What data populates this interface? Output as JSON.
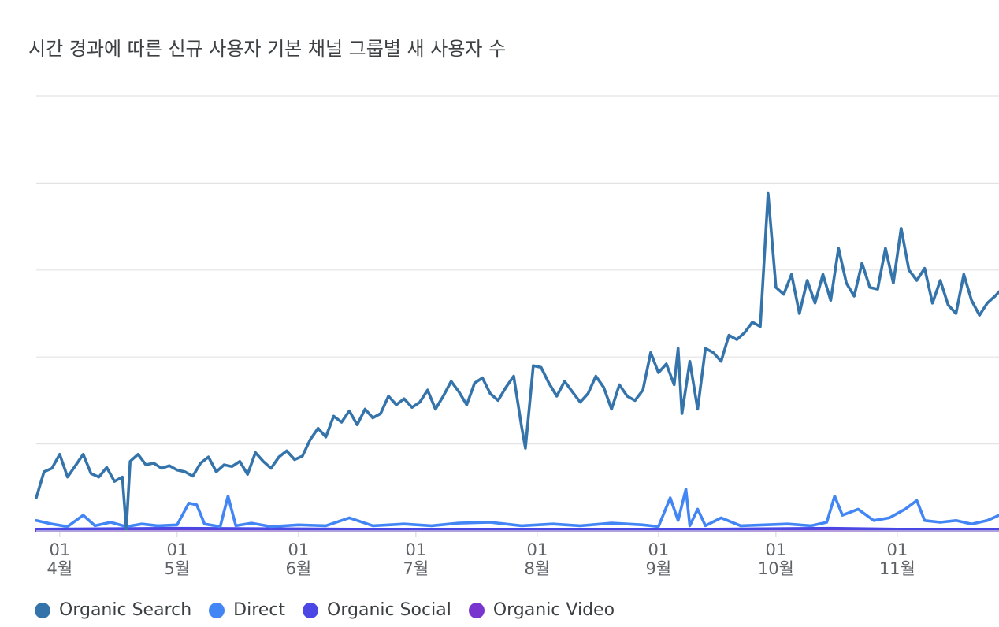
{
  "chart_data": {
    "type": "line",
    "title": "시간 경과에 따른 신규 사용자 기본 채널 그룹별 새 사용자 수",
    "month_ticks": [
      {
        "day": "01",
        "month": "4월",
        "date": "2023-04-01"
      },
      {
        "day": "01",
        "month": "5월",
        "date": "2023-05-01"
      },
      {
        "day": "01",
        "month": "6월",
        "date": "2023-06-01"
      },
      {
        "day": "01",
        "month": "7월",
        "date": "2023-07-01"
      },
      {
        "day": "01",
        "month": "8월",
        "date": "2023-08-01"
      },
      {
        "day": "01",
        "month": "9월",
        "date": "2023-09-01"
      },
      {
        "day": "01",
        "month": "10월",
        "date": "2023-10-01"
      },
      {
        "day": "01",
        "month": "11월",
        "date": "2023-11-01"
      }
    ],
    "x_range": [
      "2023-03-26",
      "2023-11-27"
    ],
    "ylim": [
      0,
      5
    ],
    "gridlines": 5,
    "legend_position": "bottom-left",
    "series": [
      {
        "name": "Organic Search",
        "color": "#3574ab",
        "points": [
          [
            "2023-03-26",
            0.38
          ],
          [
            "2023-03-28",
            0.68
          ],
          [
            "2023-03-30",
            0.72
          ],
          [
            "2023-04-01",
            0.88
          ],
          [
            "2023-04-03",
            0.62
          ],
          [
            "2023-04-05",
            0.75
          ],
          [
            "2023-04-07",
            0.88
          ],
          [
            "2023-04-09",
            0.66
          ],
          [
            "2023-04-11",
            0.62
          ],
          [
            "2023-04-13",
            0.73
          ],
          [
            "2023-04-15",
            0.57
          ],
          [
            "2023-04-17",
            0.62
          ],
          [
            "2023-04-18",
            0.02
          ],
          [
            "2023-04-19",
            0.8
          ],
          [
            "2023-04-21",
            0.88
          ],
          [
            "2023-04-23",
            0.76
          ],
          [
            "2023-04-25",
            0.78
          ],
          [
            "2023-04-27",
            0.72
          ],
          [
            "2023-04-29",
            0.75
          ],
          [
            "2023-05-01",
            0.7
          ],
          [
            "2023-05-03",
            0.68
          ],
          [
            "2023-05-05",
            0.63
          ],
          [
            "2023-05-07",
            0.78
          ],
          [
            "2023-05-09",
            0.85
          ],
          [
            "2023-05-11",
            0.68
          ],
          [
            "2023-05-13",
            0.76
          ],
          [
            "2023-05-15",
            0.74
          ],
          [
            "2023-05-17",
            0.8
          ],
          [
            "2023-05-19",
            0.65
          ],
          [
            "2023-05-21",
            0.9
          ],
          [
            "2023-05-23",
            0.8
          ],
          [
            "2023-05-25",
            0.72
          ],
          [
            "2023-05-27",
            0.85
          ],
          [
            "2023-05-29",
            0.92
          ],
          [
            "2023-05-31",
            0.82
          ],
          [
            "2023-06-02",
            0.86
          ],
          [
            "2023-06-04",
            1.05
          ],
          [
            "2023-06-06",
            1.18
          ],
          [
            "2023-06-08",
            1.08
          ],
          [
            "2023-06-10",
            1.32
          ],
          [
            "2023-06-12",
            1.25
          ],
          [
            "2023-06-14",
            1.38
          ],
          [
            "2023-06-16",
            1.22
          ],
          [
            "2023-06-18",
            1.4
          ],
          [
            "2023-06-20",
            1.3
          ],
          [
            "2023-06-22",
            1.35
          ],
          [
            "2023-06-24",
            1.55
          ],
          [
            "2023-06-26",
            1.45
          ],
          [
            "2023-06-28",
            1.52
          ],
          [
            "2023-06-30",
            1.42
          ],
          [
            "2023-07-02",
            1.48
          ],
          [
            "2023-07-04",
            1.62
          ],
          [
            "2023-07-06",
            1.4
          ],
          [
            "2023-07-08",
            1.55
          ],
          [
            "2023-07-10",
            1.72
          ],
          [
            "2023-07-12",
            1.6
          ],
          [
            "2023-07-14",
            1.45
          ],
          [
            "2023-07-16",
            1.7
          ],
          [
            "2023-07-18",
            1.76
          ],
          [
            "2023-07-20",
            1.58
          ],
          [
            "2023-07-22",
            1.5
          ],
          [
            "2023-07-24",
            1.65
          ],
          [
            "2023-07-26",
            1.78
          ],
          [
            "2023-07-28",
            1.2
          ],
          [
            "2023-07-29",
            0.95
          ],
          [
            "2023-07-31",
            1.9
          ],
          [
            "2023-08-02",
            1.88
          ],
          [
            "2023-08-04",
            1.7
          ],
          [
            "2023-08-06",
            1.55
          ],
          [
            "2023-08-08",
            1.72
          ],
          [
            "2023-08-10",
            1.6
          ],
          [
            "2023-08-12",
            1.48
          ],
          [
            "2023-08-14",
            1.58
          ],
          [
            "2023-08-16",
            1.78
          ],
          [
            "2023-08-18",
            1.65
          ],
          [
            "2023-08-20",
            1.4
          ],
          [
            "2023-08-22",
            1.68
          ],
          [
            "2023-08-24",
            1.55
          ],
          [
            "2023-08-26",
            1.5
          ],
          [
            "2023-08-28",
            1.62
          ],
          [
            "2023-08-30",
            2.05
          ],
          [
            "2023-09-01",
            1.82
          ],
          [
            "2023-09-03",
            1.92
          ],
          [
            "2023-09-05",
            1.68
          ],
          [
            "2023-09-06",
            2.1
          ],
          [
            "2023-09-07",
            1.35
          ],
          [
            "2023-09-09",
            1.95
          ],
          [
            "2023-09-11",
            1.4
          ],
          [
            "2023-09-13",
            2.1
          ],
          [
            "2023-09-15",
            2.05
          ],
          [
            "2023-09-17",
            1.95
          ],
          [
            "2023-09-19",
            2.25
          ],
          [
            "2023-09-21",
            2.2
          ],
          [
            "2023-09-23",
            2.28
          ],
          [
            "2023-09-25",
            2.4
          ],
          [
            "2023-09-27",
            2.35
          ],
          [
            "2023-09-29",
            3.88
          ],
          [
            "2023-10-01",
            2.8
          ],
          [
            "2023-10-03",
            2.72
          ],
          [
            "2023-10-05",
            2.95
          ],
          [
            "2023-10-07",
            2.5
          ],
          [
            "2023-10-09",
            2.88
          ],
          [
            "2023-10-11",
            2.62
          ],
          [
            "2023-10-13",
            2.95
          ],
          [
            "2023-10-15",
            2.65
          ],
          [
            "2023-10-17",
            3.25
          ],
          [
            "2023-10-19",
            2.85
          ],
          [
            "2023-10-21",
            2.7
          ],
          [
            "2023-10-23",
            3.08
          ],
          [
            "2023-10-25",
            2.8
          ],
          [
            "2023-10-27",
            2.78
          ],
          [
            "2023-10-29",
            3.25
          ],
          [
            "2023-10-31",
            2.85
          ],
          [
            "2023-11-02",
            3.48
          ],
          [
            "2023-11-04",
            3.0
          ],
          [
            "2023-11-06",
            2.88
          ],
          [
            "2023-11-08",
            3.02
          ],
          [
            "2023-11-10",
            2.62
          ],
          [
            "2023-11-12",
            2.88
          ],
          [
            "2023-11-14",
            2.6
          ],
          [
            "2023-11-16",
            2.5
          ],
          [
            "2023-11-18",
            2.95
          ],
          [
            "2023-11-20",
            2.65
          ],
          [
            "2023-11-22",
            2.48
          ],
          [
            "2023-11-24",
            2.62
          ],
          [
            "2023-11-26",
            2.7
          ],
          [
            "2023-11-27",
            2.75
          ]
        ]
      },
      {
        "name": "Direct",
        "color": "#4285f4",
        "points": [
          [
            "2023-03-26",
            0.12
          ],
          [
            "2023-03-30",
            0.08
          ],
          [
            "2023-04-03",
            0.05
          ],
          [
            "2023-04-07",
            0.18
          ],
          [
            "2023-04-10",
            0.06
          ],
          [
            "2023-04-14",
            0.1
          ],
          [
            "2023-04-18",
            0.05
          ],
          [
            "2023-04-22",
            0.08
          ],
          [
            "2023-04-26",
            0.06
          ],
          [
            "2023-05-01",
            0.07
          ],
          [
            "2023-05-04",
            0.32
          ],
          [
            "2023-05-06",
            0.3
          ],
          [
            "2023-05-08",
            0.08
          ],
          [
            "2023-05-12",
            0.05
          ],
          [
            "2023-05-14",
            0.4
          ],
          [
            "2023-05-16",
            0.06
          ],
          [
            "2023-05-20",
            0.09
          ],
          [
            "2023-05-25",
            0.05
          ],
          [
            "2023-06-01",
            0.07
          ],
          [
            "2023-06-08",
            0.06
          ],
          [
            "2023-06-14",
            0.15
          ],
          [
            "2023-06-20",
            0.06
          ],
          [
            "2023-06-28",
            0.08
          ],
          [
            "2023-07-05",
            0.06
          ],
          [
            "2023-07-12",
            0.09
          ],
          [
            "2023-07-20",
            0.1
          ],
          [
            "2023-07-28",
            0.06
          ],
          [
            "2023-08-05",
            0.08
          ],
          [
            "2023-08-12",
            0.06
          ],
          [
            "2023-08-20",
            0.09
          ],
          [
            "2023-08-28",
            0.07
          ],
          [
            "2023-09-01",
            0.05
          ],
          [
            "2023-09-04",
            0.38
          ],
          [
            "2023-09-06",
            0.12
          ],
          [
            "2023-09-08",
            0.48
          ],
          [
            "2023-09-09",
            0.06
          ],
          [
            "2023-09-11",
            0.25
          ],
          [
            "2023-09-13",
            0.06
          ],
          [
            "2023-09-17",
            0.15
          ],
          [
            "2023-09-22",
            0.06
          ],
          [
            "2023-09-28",
            0.07
          ],
          [
            "2023-10-04",
            0.08
          ],
          [
            "2023-10-10",
            0.06
          ],
          [
            "2023-10-14",
            0.1
          ],
          [
            "2023-10-16",
            0.4
          ],
          [
            "2023-10-18",
            0.18
          ],
          [
            "2023-10-22",
            0.25
          ],
          [
            "2023-10-26",
            0.12
          ],
          [
            "2023-10-30",
            0.15
          ],
          [
            "2023-11-03",
            0.25
          ],
          [
            "2023-11-06",
            0.35
          ],
          [
            "2023-11-08",
            0.12
          ],
          [
            "2023-11-12",
            0.1
          ],
          [
            "2023-11-16",
            0.12
          ],
          [
            "2023-11-20",
            0.08
          ],
          [
            "2023-11-24",
            0.12
          ],
          [
            "2023-11-27",
            0.18
          ]
        ]
      },
      {
        "name": "Organic Social",
        "color": "#4a47e5",
        "points": [
          [
            "2023-03-26",
            0.02
          ],
          [
            "2023-05-01",
            0.03
          ],
          [
            "2023-06-15",
            0.02
          ],
          [
            "2023-08-01",
            0.02
          ],
          [
            "2023-09-15",
            0.02
          ],
          [
            "2023-10-15",
            0.03
          ],
          [
            "2023-11-01",
            0.02
          ],
          [
            "2023-11-27",
            0.02
          ]
        ]
      },
      {
        "name": "Organic Video",
        "color": "#7936cf",
        "points": [
          [
            "2023-03-26",
            0.0
          ],
          [
            "2023-11-27",
            0.0
          ]
        ]
      }
    ]
  }
}
